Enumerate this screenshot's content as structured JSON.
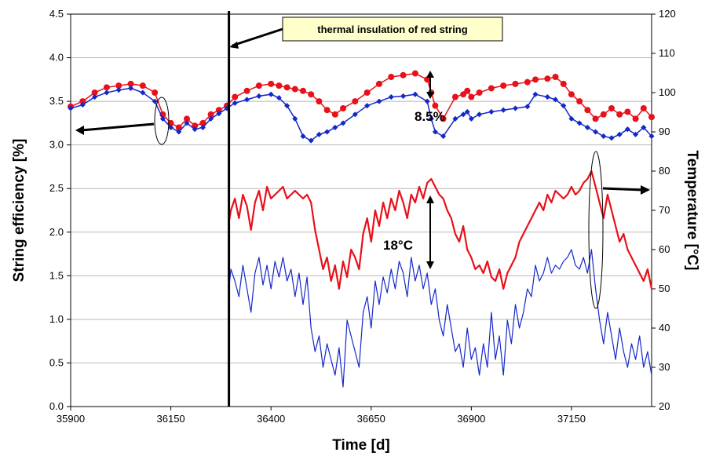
{
  "chart_data": {
    "type": "line",
    "title": "",
    "xlabel": "Time [d]",
    "ylabel_left": "String efficiency [%]",
    "ylabel_right": "Temperature [°C]",
    "xlim": [
      35900,
      37350
    ],
    "ylim_left": [
      0.0,
      4.5
    ],
    "ylim_right": [
      20,
      120
    ],
    "x_ticks": [
      35900,
      36150,
      36400,
      36650,
      36900,
      37150
    ],
    "y_ticks_left": [
      "0.0",
      "0.5",
      "1.0",
      "1.5",
      "2.0",
      "2.5",
      "3.0",
      "3.5",
      "4.0",
      "4.5"
    ],
    "y_ticks_right": [
      "20",
      "30",
      "40",
      "50",
      "60",
      "70",
      "80",
      "90",
      "100",
      "110",
      "120"
    ],
    "grid": "horizontal",
    "legend": "none",
    "colors": {
      "red": "#e8101a",
      "blue": "#1428c8",
      "callout_bg": "#ffffcc"
    },
    "event_line_x": 36295,
    "callout": "thermal insulation of red string",
    "annotations": {
      "efficiency_gap": "8.5%",
      "temperature_gap": "18°C"
    },
    "series": [
      {
        "color": "red",
        "axis": "left",
        "style": "markers",
        "x": [
          35900,
          35930,
          35960,
          35990,
          36020,
          36050,
          36080,
          36110,
          36130,
          36150,
          36170,
          36190,
          36210,
          36230,
          36250,
          36270,
          36290,
          36310,
          36340,
          36370,
          36400,
          36420,
          36440,
          36460,
          36480,
          36500,
          36520,
          36540,
          36560,
          36580,
          36610,
          36640,
          36670,
          36700,
          36730,
          36760,
          36790,
          36800,
          36810,
          36830,
          36860,
          36880,
          36890,
          36900,
          36920,
          36950,
          36980,
          37010,
          37040,
          37060,
          37090,
          37110,
          37130,
          37150,
          37170,
          37190,
          37210,
          37230,
          37250,
          37270,
          37290,
          37310,
          37330,
          37350
        ],
        "y": [
          3.44,
          3.5,
          3.6,
          3.66,
          3.68,
          3.7,
          3.68,
          3.6,
          3.35,
          3.25,
          3.2,
          3.3,
          3.22,
          3.25,
          3.35,
          3.4,
          3.45,
          3.55,
          3.62,
          3.68,
          3.7,
          3.68,
          3.66,
          3.64,
          3.62,
          3.58,
          3.5,
          3.4,
          3.35,
          3.42,
          3.5,
          3.6,
          3.7,
          3.78,
          3.8,
          3.82,
          3.75,
          3.6,
          3.45,
          3.3,
          3.55,
          3.58,
          3.62,
          3.55,
          3.6,
          3.65,
          3.68,
          3.7,
          3.72,
          3.75,
          3.76,
          3.78,
          3.7,
          3.58,
          3.5,
          3.4,
          3.3,
          3.35,
          3.42,
          3.35,
          3.38,
          3.3,
          3.42,
          3.32
        ]
      },
      {
        "color": "blue",
        "axis": "left",
        "style": "markers",
        "x": [
          35900,
          35930,
          35960,
          35990,
          36020,
          36050,
          36080,
          36110,
          36130,
          36150,
          36170,
          36190,
          36210,
          36230,
          36250,
          36270,
          36290,
          36310,
          36340,
          36370,
          36400,
          36420,
          36440,
          36460,
          36480,
          36500,
          36520,
          36540,
          36560,
          36580,
          36610,
          36640,
          36670,
          36700,
          36730,
          36760,
          36790,
          36800,
          36810,
          36830,
          36860,
          36880,
          36890,
          36900,
          36920,
          36950,
          36980,
          37010,
          37040,
          37060,
          37090,
          37110,
          37130,
          37150,
          37170,
          37190,
          37210,
          37230,
          37250,
          37270,
          37290,
          37310,
          37330,
          37350
        ],
        "y": [
          3.42,
          3.46,
          3.55,
          3.6,
          3.63,
          3.65,
          3.6,
          3.5,
          3.3,
          3.2,
          3.15,
          3.25,
          3.18,
          3.2,
          3.3,
          3.36,
          3.42,
          3.48,
          3.52,
          3.56,
          3.58,
          3.54,
          3.45,
          3.3,
          3.1,
          3.05,
          3.12,
          3.15,
          3.2,
          3.25,
          3.35,
          3.45,
          3.5,
          3.55,
          3.56,
          3.58,
          3.5,
          3.3,
          3.15,
          3.1,
          3.3,
          3.35,
          3.38,
          3.3,
          3.35,
          3.38,
          3.4,
          3.42,
          3.44,
          3.58,
          3.55,
          3.52,
          3.45,
          3.3,
          3.25,
          3.2,
          3.15,
          3.1,
          3.08,
          3.12,
          3.18,
          3.12,
          3.2,
          3.1
        ]
      },
      {
        "color": "red",
        "axis": "right",
        "style": "line",
        "x": [
          36295,
          36300,
          36310,
          36320,
          36330,
          36340,
          36350,
          36360,
          36370,
          36380,
          36390,
          36400,
          36410,
          36420,
          36430,
          36440,
          36450,
          36460,
          36470,
          36480,
          36490,
          36500,
          36510,
          36520,
          36530,
          36540,
          36550,
          36560,
          36570,
          36580,
          36590,
          36600,
          36610,
          36620,
          36630,
          36640,
          36650,
          36660,
          36670,
          36680,
          36690,
          36700,
          36710,
          36720,
          36730,
          36740,
          36750,
          36760,
          36770,
          36780,
          36790,
          36800,
          36810,
          36820,
          36830,
          36840,
          36850,
          36860,
          36870,
          36880,
          36890,
          36900,
          36910,
          36920,
          36930,
          36940,
          36950,
          36960,
          36970,
          36980,
          36990,
          37000,
          37010,
          37020,
          37030,
          37040,
          37050,
          37060,
          37070,
          37080,
          37090,
          37100,
          37110,
          37120,
          37130,
          37140,
          37150,
          37160,
          37170,
          37180,
          37190,
          37200,
          37210,
          37220,
          37230,
          37240,
          37250,
          37260,
          37270,
          37280,
          37290,
          37300,
          37310,
          37320,
          37330,
          37340,
          37350
        ],
        "y": [
          67,
          70,
          73,
          68,
          74,
          71,
          65,
          72,
          75,
          70,
          76,
          73,
          74,
          75,
          76,
          73,
          74,
          75,
          74,
          73,
          74,
          72,
          65,
          60,
          55,
          58,
          52,
          56,
          50,
          57,
          53,
          60,
          58,
          55,
          64,
          68,
          62,
          70,
          66,
          72,
          68,
          73,
          70,
          75,
          72,
          68,
          74,
          72,
          76,
          73,
          77,
          78,
          76,
          74,
          73,
          70,
          68,
          64,
          62,
          66,
          60,
          58,
          55,
          56,
          54,
          57,
          53,
          52,
          55,
          50,
          54,
          56,
          58,
          62,
          64,
          66,
          68,
          70,
          72,
          70,
          74,
          72,
          75,
          74,
          73,
          74,
          76,
          74,
          75,
          77,
          78,
          80,
          76,
          72,
          68,
          74,
          70,
          66,
          62,
          64,
          60,
          58,
          56,
          54,
          52,
          55,
          50
        ]
      },
      {
        "color": "blue",
        "axis": "right",
        "style": "line",
        "x": [
          36295,
          36300,
          36310,
          36320,
          36330,
          36340,
          36350,
          36360,
          36370,
          36380,
          36390,
          36400,
          36410,
          36420,
          36430,
          36440,
          36450,
          36460,
          36470,
          36480,
          36490,
          36500,
          36510,
          36520,
          36530,
          36540,
          36550,
          36560,
          36570,
          36580,
          36590,
          36600,
          36610,
          36620,
          36630,
          36640,
          36650,
          36660,
          36670,
          36680,
          36690,
          36700,
          36710,
          36720,
          36730,
          36740,
          36750,
          36760,
          36770,
          36780,
          36790,
          36800,
          36810,
          36820,
          36830,
          36840,
          36850,
          36860,
          36870,
          36880,
          36890,
          36900,
          36910,
          36920,
          36930,
          36940,
          36950,
          36960,
          36970,
          36980,
          36990,
          37000,
          37010,
          37020,
          37030,
          37040,
          37050,
          37060,
          37070,
          37080,
          37090,
          37100,
          37110,
          37120,
          37130,
          37140,
          37150,
          37160,
          37170,
          37180,
          37190,
          37200,
          37210,
          37220,
          37230,
          37240,
          37250,
          37260,
          37270,
          37280,
          37290,
          37300,
          37310,
          37320,
          37330,
          37340,
          37350
        ],
        "y": [
          50,
          55,
          52,
          48,
          56,
          50,
          44,
          54,
          58,
          51,
          56,
          50,
          57,
          53,
          58,
          52,
          55,
          48,
          54,
          46,
          53,
          40,
          34,
          38,
          30,
          36,
          32,
          28,
          35,
          25,
          42,
          38,
          34,
          30,
          44,
          48,
          40,
          52,
          46,
          53,
          49,
          55,
          50,
          57,
          54,
          48,
          58,
          52,
          56,
          50,
          54,
          46,
          50,
          42,
          38,
          46,
          40,
          34,
          36,
          30,
          40,
          32,
          35,
          28,
          36,
          30,
          44,
          32,
          38,
          28,
          42,
          36,
          46,
          40,
          44,
          50,
          48,
          56,
          52,
          54,
          58,
          54,
          56,
          55,
          57,
          58,
          60,
          56,
          55,
          58,
          54,
          60,
          50,
          42,
          36,
          44,
          38,
          32,
          40,
          34,
          30,
          36,
          32,
          38,
          30,
          34,
          28
        ]
      }
    ]
  }
}
